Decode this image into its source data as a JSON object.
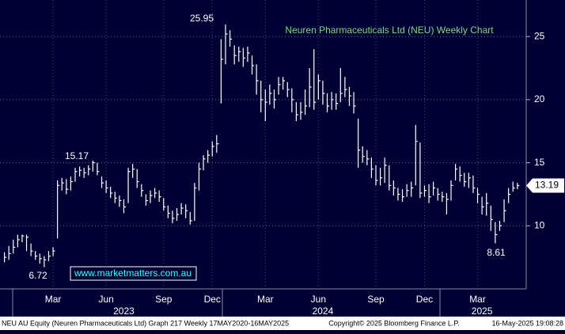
{
  "chart_data": {
    "type": "ohlc",
    "title": "Neuren Pharmaceuticals Ltd (NEU) Weekly Chart",
    "color": "#ffffff",
    "high": [
      7.9,
      8.4,
      8.9,
      9.3,
      9.3,
      9.3,
      8.6,
      8.0,
      7.8,
      7.6,
      8.0,
      8.3,
      13.6,
      13.8,
      13.7,
      13.9,
      14.6,
      14.7,
      14.6,
      14.8,
      15.17,
      15.0,
      13.9,
      13.6,
      13.1,
      12.7,
      12.4,
      12.1,
      14.6,
      14.9,
      14.5,
      13.3,
      12.5,
      12.8,
      13.0,
      12.8,
      12.2,
      11.6,
      11.2,
      11.4,
      11.8,
      11.7,
      11.1,
      13.4,
      15.0,
      15.6,
      16.0,
      16.7,
      17.2,
      24.8,
      25.95,
      25.5,
      24.3,
      24.2,
      24.1,
      24.2,
      23.5,
      22.8,
      21.5,
      20.8,
      21.2,
      20.8,
      21.8,
      21.8,
      21.4,
      20.9,
      19.8,
      19.8,
      20.8,
      22.5,
      24.0,
      22.0,
      21.5,
      20.5,
      20.6,
      20.5,
      22.5,
      21.8,
      21.0,
      20.6,
      18.5,
      16.3,
      16.0,
      15.4,
      14.8,
      14.6,
      15.4,
      14.8,
      13.6,
      13.0,
      12.9,
      13.3,
      13.5,
      18.0,
      16.6,
      13.2,
      13.3,
      13.5,
      13.0,
      12.7,
      12.6,
      13.6,
      14.9,
      14.7,
      14.2,
      14.2,
      14.0,
      13.0,
      12.3,
      12.6,
      11.6,
      10.3,
      10.4,
      12.1,
      13.0,
      13.5,
      13.4
    ],
    "low": [
      7.1,
      7.3,
      7.8,
      8.3,
      8.7,
      8.0,
      7.6,
      7.3,
      7.0,
      6.72,
      7.2,
      7.6,
      9.0,
      12.8,
      12.5,
      12.8,
      13.5,
      13.9,
      13.8,
      14.0,
      14.3,
      14.0,
      13.0,
      12.6,
      12.2,
      11.8,
      11.5,
      11.0,
      11.8,
      13.8,
      13.0,
      12.3,
      11.6,
      11.8,
      12.2,
      11.9,
      11.2,
      10.6,
      10.2,
      10.4,
      10.9,
      10.6,
      10.1,
      10.4,
      12.8,
      14.4,
      15.0,
      15.5,
      15.8,
      19.7,
      22.8,
      24.2,
      22.8,
      23.0,
      22.6,
      23.0,
      22.0,
      20.4,
      19.0,
      18.3,
      19.6,
      19.3,
      20.4,
      20.8,
      20.2,
      19.0,
      18.3,
      18.4,
      18.8,
      19.4,
      19.2,
      20.0,
      19.6,
      19.0,
      19.2,
      19.2,
      19.8,
      20.2,
      19.5,
      18.9,
      14.6,
      15.0,
      14.8,
      13.8,
      13.2,
      13.2,
      13.4,
      12.8,
      12.4,
      12.0,
      11.9,
      12.3,
      12.3,
      13.2,
      12.2,
      12.3,
      11.8,
      12.4,
      12.0,
      11.9,
      10.9,
      12.0,
      13.6,
      13.5,
      13.1,
      13.0,
      12.6,
      11.8,
      10.9,
      10.8,
      9.6,
      8.61,
      9.6,
      10.3,
      11.8,
      12.7,
      12.9
    ],
    "close": [
      7.5,
      7.8,
      8.3,
      8.9,
      9.2,
      9.1,
      8.0,
      7.6,
      7.4,
      7.3,
      7.6,
      8.0,
      13.2,
      13.4,
      12.9,
      13.5,
      14.3,
      14.4,
      14.2,
      14.5,
      15.0,
      14.3,
      13.4,
      13.0,
      12.6,
      12.2,
      12.0,
      11.5,
      14.3,
      14.5,
      13.5,
      12.8,
      12.0,
      12.4,
      12.6,
      12.3,
      11.5,
      11.0,
      10.6,
      10.9,
      11.4,
      11.2,
      10.4,
      13.0,
      14.5,
      15.3,
      15.6,
      16.3,
      16.5,
      23.2,
      25.2,
      24.8,
      23.5,
      23.8,
      23.3,
      23.7,
      22.7,
      21.5,
      20.0,
      19.8,
      20.5,
      20.0,
      21.2,
      21.5,
      20.8,
      20.0,
      18.8,
      19.0,
      19.5,
      21.0,
      19.8,
      21.5,
      20.5,
      19.5,
      20.0,
      19.7,
      20.5,
      20.8,
      20.3,
      19.5,
      16.0,
      15.5,
      15.3,
      14.5,
      13.6,
      13.8,
      14.8,
      13.2,
      13.0,
      12.5,
      12.3,
      12.8,
      13.0,
      16.7,
      12.6,
      12.8,
      12.3,
      13.0,
      12.5,
      12.3,
      12.1,
      13.2,
      14.5,
      14.0,
      13.5,
      13.8,
      13.0,
      12.5,
      11.5,
      11.8,
      10.5,
      9.3,
      10.0,
      11.2,
      12.5,
      13.0,
      13.19
    ],
    "xlim": [
      -1,
      118
    ],
    "xticks": [
      {
        "value": 11,
        "label": "Mar"
      },
      {
        "value": 23,
        "label": "Jun"
      },
      {
        "value": 36,
        "label": "Sep"
      },
      {
        "value": 47,
        "label": "Dec"
      },
      {
        "value": 59,
        "label": "Mar"
      },
      {
        "value": 71,
        "label": "Jun"
      },
      {
        "value": 84,
        "label": "Sep"
      },
      {
        "value": 95,
        "label": "Dec"
      },
      {
        "value": 107,
        "label": "Mar"
      }
    ],
    "xticks2": [
      {
        "value": 27,
        "label": "2023"
      },
      {
        "value": 72,
        "label": "2024"
      },
      {
        "value": 108,
        "label": "2025"
      }
    ],
    "ylim": [
      5,
      27.9
    ],
    "yticks": [
      10,
      15,
      20,
      25
    ],
    "grid": true,
    "annotations": [
      "25.95",
      "15.17",
      "6.72",
      "8.61"
    ],
    "watermark": "www.marketmatters.com.au",
    "footer": [
      "NEU AU Equity (Neuren Pharmaceuticals Ltd) Graph 217  Weekly 17MAY2020-16MAY2025",
      "Copyright© 2025 Bloomberg Finance L.P.",
      "16-May-2025 19:08:28"
    ]
  }
}
